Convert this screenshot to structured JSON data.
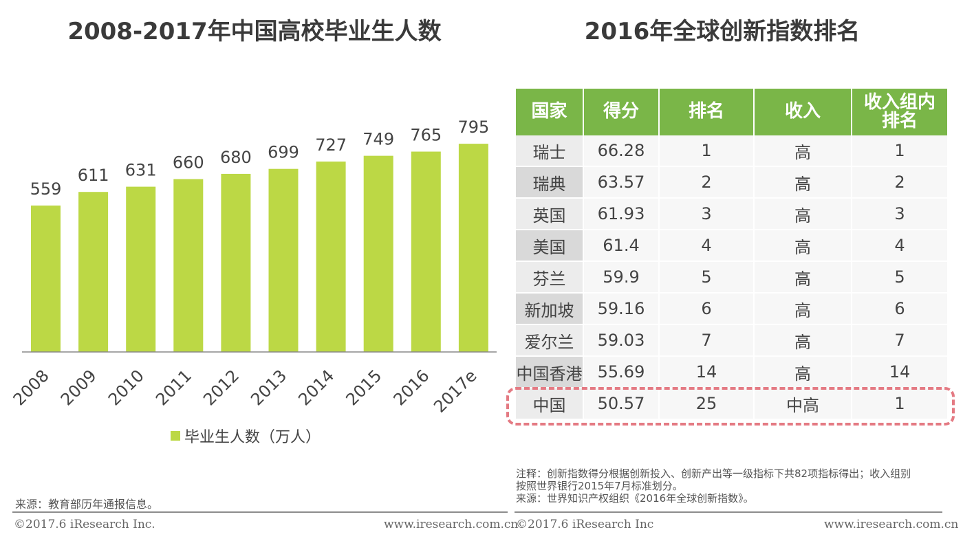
{
  "left_title": "2008-2017年中国高校毕业生人数",
  "right_title": "2016年全球创新指数排名",
  "chart_data": {
    "type": "bar",
    "title": "2008-2017年中国高校毕业生人数",
    "categories": [
      "2008",
      "2009",
      "2010",
      "2011",
      "2012",
      "2013",
      "2014",
      "2015",
      "2016",
      "2017e"
    ],
    "series": [
      {
        "name": "毕业生人数（万人）",
        "values": [
          559,
          611,
          631,
          660,
          680,
          699,
          727,
          749,
          765,
          795
        ]
      }
    ],
    "xlabel": "",
    "ylabel": "",
    "ylim": [
      0,
      1000
    ],
    "color": "#bcd845",
    "legend": "bottom-center"
  },
  "legend_label": "毕业生人数（万人）",
  "table": {
    "headers": [
      "国家",
      "得分",
      "排名",
      "收入",
      "收入组内\n排名"
    ],
    "rows": [
      [
        "瑞士",
        "66.28",
        "1",
        "高",
        "1"
      ],
      [
        "瑞典",
        "63.57",
        "2",
        "高",
        "2"
      ],
      [
        "英国",
        "61.93",
        "3",
        "高",
        "3"
      ],
      [
        "美国",
        "61.4",
        "4",
        "高",
        "4"
      ],
      [
        "芬兰",
        "59.9",
        "5",
        "高",
        "5"
      ],
      [
        "新加坡",
        "59.16",
        "6",
        "高",
        "6"
      ],
      [
        "爱尔兰",
        "59.03",
        "7",
        "高",
        "7"
      ],
      [
        "中国香港",
        "55.69",
        "14",
        "高",
        "14"
      ],
      [
        "中国",
        "50.57",
        "25",
        "中高",
        "1"
      ]
    ],
    "header_color": "#7ab648",
    "highlight_color": "#e47a83"
  },
  "note_line1": "注释：创新指数得分根据创新投入、创新产出等一级指标下共82项指标得出；收入组别",
  "note_line2": "按照世界银行2015年7月标准划分。",
  "note_source": "来源：世界知识产权组织《2016年全球创新指数》。",
  "left_source": "来源：教育部历年通报信息。",
  "footer_left_copyright": "©2017.6 iResearch Inc.",
  "footer_left_url": "www.iresearch.com.cn",
  "footer_right_copyright": "©2017.6 iResearch Inc",
  "footer_right_url": "www.iresearch.com.cn"
}
